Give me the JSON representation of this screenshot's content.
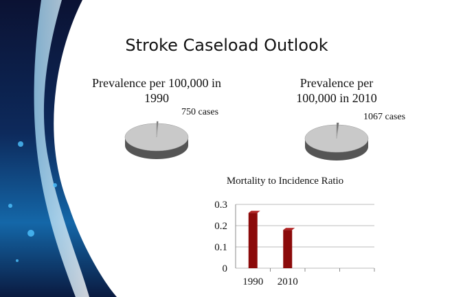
{
  "title": "Stroke Caseload Outlook",
  "chart_data": [
    {
      "type": "pie",
      "title": "Prevalence per 100,000 in 1990",
      "values": [
        750,
        99250
      ],
      "value_labels": [
        "750 cases",
        null
      ],
      "colors": [
        "#6e6e6e",
        "#c9c9c9"
      ]
    },
    {
      "type": "pie",
      "title": "Prevalence per 100,000 in 2010",
      "values": [
        1067,
        98933
      ],
      "value_labels": [
        "1067 cases",
        null
      ],
      "colors": [
        "#6e6e6e",
        "#c9c9c9"
      ]
    },
    {
      "type": "bar",
      "title": "Mortality to Incidence Ratio",
      "categories": [
        "1990",
        "2010",
        null,
        null
      ],
      "values": [
        0.26,
        0.18,
        null,
        null
      ],
      "color": "#8b0a0a",
      "ylim": [
        0,
        0.3
      ],
      "yticks": [
        0,
        0.1,
        0.2,
        0.3
      ],
      "grid": true
    }
  ]
}
